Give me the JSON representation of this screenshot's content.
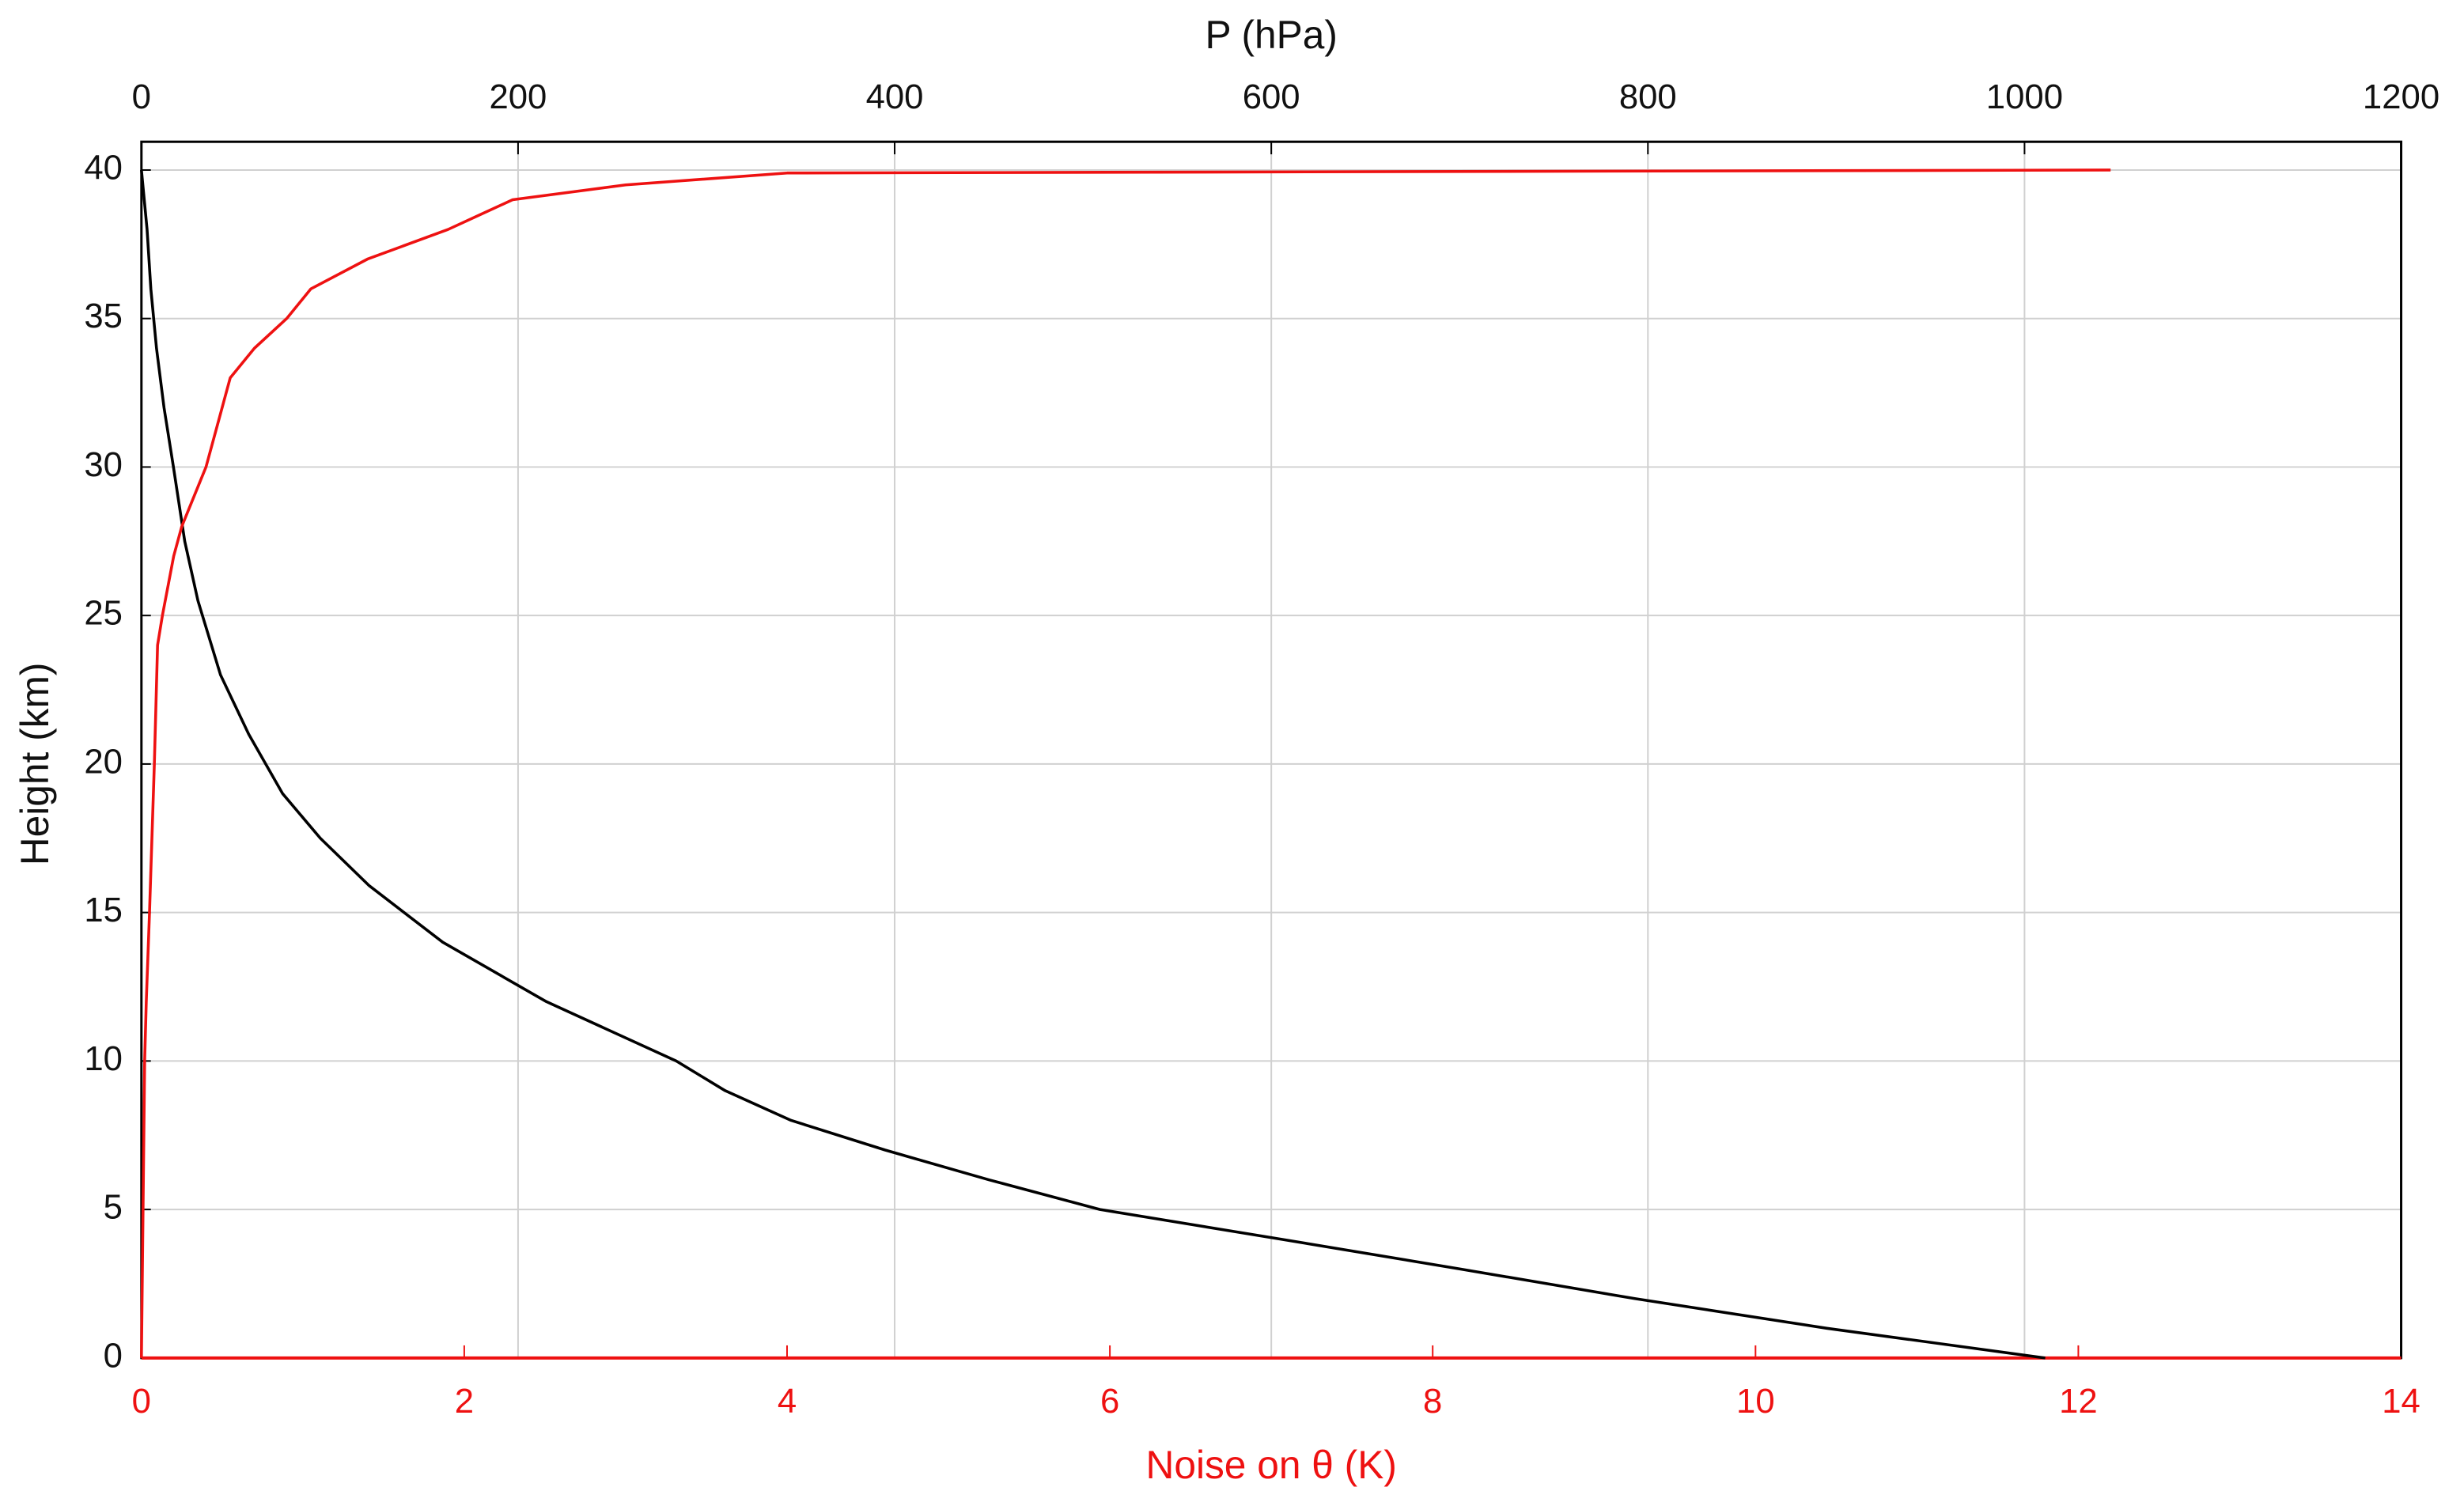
{
  "chart_data": {
    "type": "line",
    "xlabel": "Noise on θ (K)",
    "x2label": "P (hPa)",
    "ylabel": "Height (km)",
    "xlim": [
      0,
      14
    ],
    "xticks": [
      0,
      2,
      4,
      6,
      8,
      10,
      12,
      14
    ],
    "xcolor": "#ee1111",
    "x2lim": [
      0,
      1200
    ],
    "x2ticks": [
      0,
      200,
      400,
      600,
      800,
      1000,
      1200
    ],
    "ylim": [
      0,
      40
    ],
    "yticks": [
      0,
      5,
      10,
      15,
      20,
      25,
      30,
      35,
      40
    ],
    "grid": true,
    "series": [
      {
        "color": "#000000",
        "axis": "x2",
        "x": [
          1011,
          895,
          793,
          700,
          605,
          509,
          450,
          395,
          345,
          310,
          284,
          215,
          160,
          121,
          95,
          75,
          57,
          42,
          30,
          23,
          17,
          12,
          8,
          5,
          3,
          0
        ],
        "values": [
          0,
          1,
          2,
          3,
          4,
          5,
          6,
          7,
          8,
          9,
          10,
          12,
          14,
          15.9,
          17.5,
          19,
          21,
          23,
          25.5,
          27.5,
          30,
          32,
          34,
          36,
          38,
          40
        ]
      },
      {
        "color": "#ee1111",
        "axis": "x",
        "x": [
          0.0,
          0.02,
          0.03,
          0.05,
          0.08,
          0.1,
          0.13,
          0.2,
          0.25,
          0.4,
          0.5,
          0.55,
          0.7,
          0.9,
          1.05,
          1.4,
          1.9,
          2.1,
          2.3,
          3.0,
          4.0,
          12.2
        ],
        "values": [
          0,
          10,
          12,
          15,
          20,
          24,
          25,
          27,
          28,
          30,
          32,
          33,
          34,
          35,
          36,
          37,
          38,
          38.5,
          39,
          39.5,
          39.9,
          40
        ]
      }
    ]
  }
}
